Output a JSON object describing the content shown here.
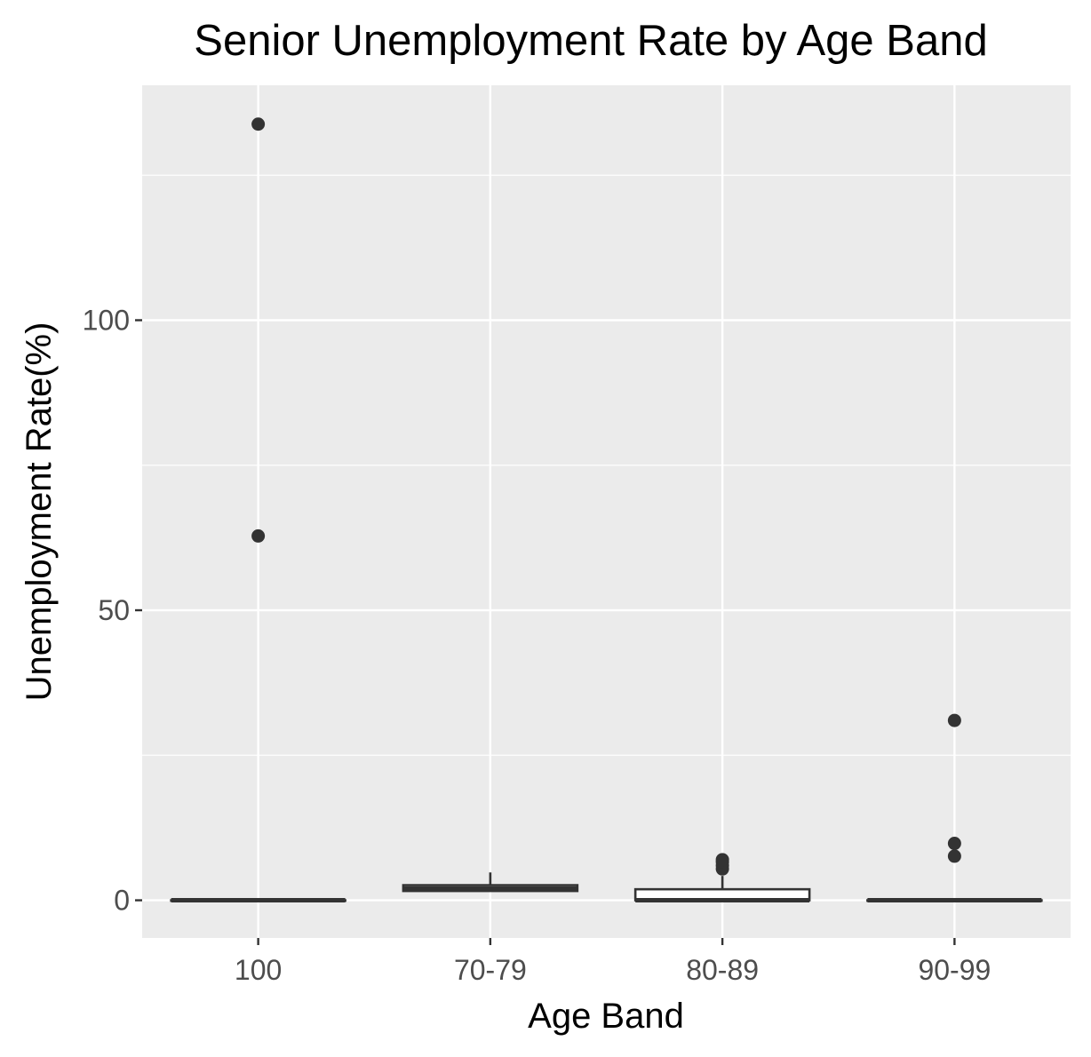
{
  "chart_data": {
    "type": "boxplot",
    "title": "Senior Unemployment Rate by Age Band",
    "xlabel": "Age Band",
    "ylabel": "Unemployment Rate(%)",
    "categories": [
      "100",
      "70-79",
      "80-89",
      "90-99"
    ],
    "ylim": [
      -6.5,
      140.5
    ],
    "yticks": [
      0,
      50,
      100
    ],
    "yticklabels": [
      "0",
      "50",
      "100"
    ],
    "grid": true,
    "boxes": [
      {
        "category": "100",
        "whisker_low": 0,
        "q1": 0,
        "median": 0,
        "q3": 0,
        "whisker_high": 0,
        "outliers": [
          133.8,
          62.8
        ]
      },
      {
        "category": "70-79",
        "whisker_low": 1.5,
        "q1": 1.6,
        "median": 2.0,
        "q3": 2.6,
        "whisker_high": 4.8,
        "outliers": []
      },
      {
        "category": "80-89",
        "whisker_low": 0,
        "q1": 0,
        "median": 0,
        "q3": 1.9,
        "whisker_high": 4.2,
        "outliers": [
          5.4,
          6.0,
          6.6,
          7.0
        ]
      },
      {
        "category": "90-99",
        "whisker_low": 0,
        "q1": 0,
        "median": 0,
        "q3": 0,
        "whisker_high": 0,
        "outliers": [
          31.0,
          9.8,
          7.6
        ]
      }
    ],
    "colors": {
      "panel": "#ebebeb",
      "grid": "#ffffff",
      "box_line": "#333333",
      "box_fill": "#ffffff",
      "point": "#333333"
    }
  }
}
